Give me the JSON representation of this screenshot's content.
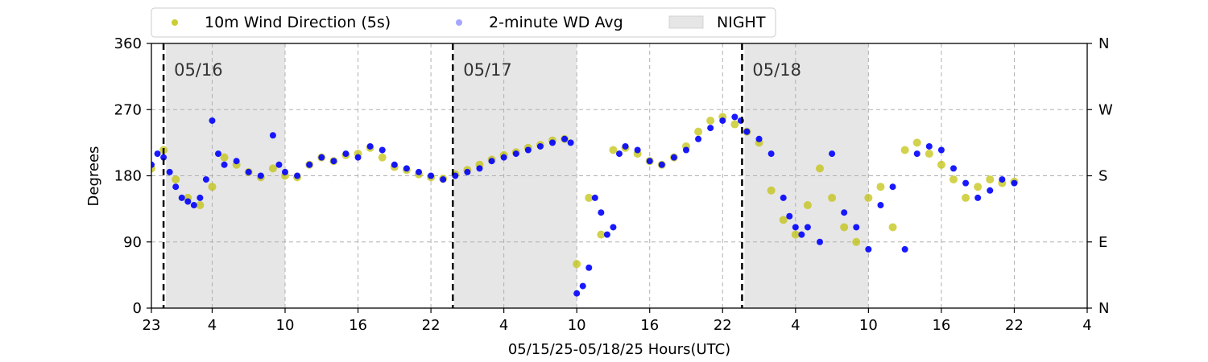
{
  "chart_data": {
    "type": "scatter",
    "title": "",
    "xlabel": "05/15/25-05/18/25  Hours(UTC)",
    "ylabel": "Degrees",
    "x_range_hours": [
      0,
      77
    ],
    "x_ticks": [
      {
        "h": 0,
        "label": "23"
      },
      {
        "h": 5,
        "label": "4"
      },
      {
        "h": 11,
        "label": "10"
      },
      {
        "h": 17,
        "label": "16"
      },
      {
        "h": 23,
        "label": "22"
      },
      {
        "h": 29,
        "label": "4"
      },
      {
        "h": 35,
        "label": "10"
      },
      {
        "h": 41,
        "label": "16"
      },
      {
        "h": 47,
        "label": "22"
      },
      {
        "h": 53,
        "label": "4"
      },
      {
        "h": 59,
        "label": "10"
      },
      {
        "h": 65,
        "label": "16"
      },
      {
        "h": 71,
        "label": "22"
      },
      {
        "h": 77,
        "label": "4"
      }
    ],
    "ylim": [
      0,
      360
    ],
    "y_ticks": [
      "0",
      "90",
      "180",
      "270",
      "360"
    ],
    "y_ticks_right": [
      "N",
      "E",
      "S",
      "W",
      "N"
    ],
    "grid": true,
    "legend_placement": "top",
    "legend": [
      {
        "label": "10m Wind Direction (5s)",
        "color": "#bfbf00"
      },
      {
        "label": "2-minute WD Avg",
        "color": "#0000ff"
      },
      {
        "label": "NIGHT",
        "color": "#e6e6e6"
      }
    ],
    "night_periods": [
      [
        1.2,
        11
      ],
      [
        24.9,
        35
      ],
      [
        48.8,
        59
      ]
    ],
    "day_markers": [
      {
        "h": 1,
        "label": "05/16"
      },
      {
        "h": 24.8,
        "label": "05/17"
      },
      {
        "h": 48.6,
        "label": "05/18"
      }
    ],
    "series": [
      {
        "name": "2-minute WD Avg",
        "x": [
          0,
          0.5,
          1,
          1.5,
          2,
          2.5,
          3,
          3.5,
          4,
          4.5,
          5,
          5.5,
          6,
          7,
          8,
          9,
          10,
          10.5,
          11,
          12,
          13,
          14,
          15,
          16,
          17,
          18,
          19,
          20,
          21,
          22,
          23,
          24,
          25,
          26,
          27,
          28,
          29,
          30,
          31,
          32,
          33,
          34,
          34.5,
          35,
          35.5,
          36,
          36.5,
          37,
          37.5,
          38,
          38.5,
          39,
          40,
          41,
          42,
          43,
          44,
          45,
          46,
          47,
          48,
          48.5,
          49,
          50,
          51,
          52,
          52.5,
          53,
          53.5,
          54,
          55,
          56,
          57,
          58,
          59,
          60,
          61,
          62,
          63,
          64,
          65,
          66,
          67,
          68,
          69,
          70,
          71
        ],
        "y": [
          195,
          210,
          205,
          185,
          165,
          150,
          145,
          140,
          150,
          175,
          255,
          210,
          195,
          200,
          185,
          180,
          235,
          195,
          185,
          180,
          195,
          205,
          200,
          210,
          205,
          220,
          215,
          195,
          190,
          185,
          180,
          175,
          180,
          185,
          190,
          200,
          205,
          210,
          215,
          220,
          225,
          230,
          225,
          20,
          30,
          55,
          150,
          130,
          100,
          110,
          210,
          220,
          215,
          200,
          195,
          205,
          215,
          230,
          245,
          255,
          260,
          255,
          240,
          230,
          210,
          150,
          125,
          110,
          100,
          110,
          90,
          210,
          130,
          110,
          80,
          140,
          165,
          80,
          210,
          220,
          215,
          190,
          170,
          150,
          160,
          175,
          170
        ]
      },
      {
        "name": "10m Wind Direction (5s)",
        "x": [
          0,
          1,
          2,
          3,
          4,
          5,
          6,
          7,
          8,
          9,
          10,
          11,
          12,
          13,
          14,
          15,
          16,
          17,
          18,
          19,
          20,
          21,
          22,
          23,
          24,
          25,
          26,
          27,
          28,
          29,
          30,
          31,
          32,
          33,
          34,
          35,
          36,
          37,
          38,
          39,
          40,
          41,
          42,
          43,
          44,
          45,
          46,
          47,
          48,
          49,
          50,
          51,
          52,
          53,
          54,
          55,
          56,
          57,
          58,
          59,
          60,
          61,
          62,
          63,
          64,
          65,
          66,
          67,
          68,
          69,
          70,
          71
        ],
        "y": [
          190,
          215,
          175,
          150,
          140,
          165,
          205,
          195,
          185,
          178,
          190,
          180,
          178,
          195,
          205,
          200,
          208,
          210,
          218,
          205,
          192,
          188,
          182,
          178,
          176,
          182,
          188,
          195,
          202,
          208,
          212,
          218,
          222,
          228,
          230,
          60,
          150,
          100,
          215,
          218,
          210,
          200,
          195,
          205,
          220,
          240,
          255,
          260,
          250,
          240,
          225,
          160,
          120,
          100,
          140,
          190,
          150,
          110,
          90,
          150,
          165,
          110,
          215,
          225,
          210,
          195,
          175,
          150,
          165,
          175,
          170,
          172
        ]
      }
    ]
  }
}
